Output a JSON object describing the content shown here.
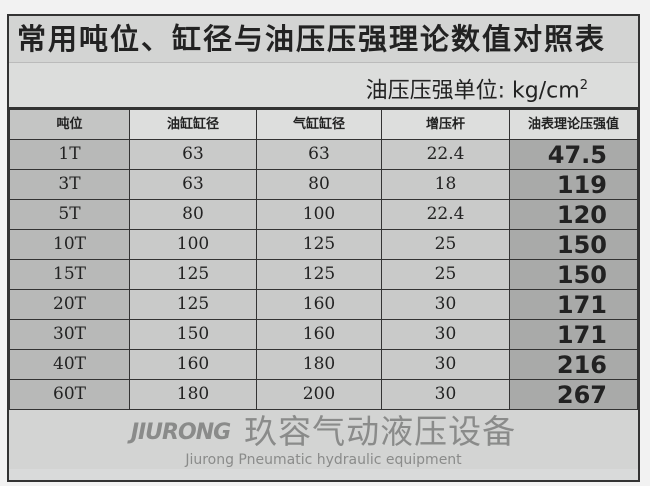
{
  "title": "常用吨位、缸径与油压压强理论数值对照表",
  "unit_label": "油压压强单位: kg/cm",
  "unit_sup": "2",
  "headers": [
    "吨位",
    "油缸缸径",
    "气缸缸径",
    "增压杆",
    "油表理论压强值"
  ],
  "rows": [
    [
      "1T",
      "63",
      "63",
      "22.4",
      "47.5"
    ],
    [
      "3T",
      "63",
      "80",
      "18",
      "119"
    ],
    [
      "5T",
      "80",
      "100",
      "22.4",
      "120"
    ],
    [
      "10T",
      "100",
      "125",
      "25",
      "150"
    ],
    [
      "15T",
      "125",
      "125",
      "25",
      "150"
    ],
    [
      "20T",
      "125",
      "160",
      "30",
      "171"
    ],
    [
      "30T",
      "150",
      "160",
      "30",
      "171"
    ],
    [
      "40T",
      "160",
      "180",
      "30",
      "216"
    ],
    [
      "60T",
      "180",
      "200",
      "30",
      "267"
    ]
  ],
  "watermark": {
    "logo": "JIURONG",
    "chinese": "玖容气动液压设备",
    "english": "Jiurong Pneumatic hydraulic equipment"
  }
}
